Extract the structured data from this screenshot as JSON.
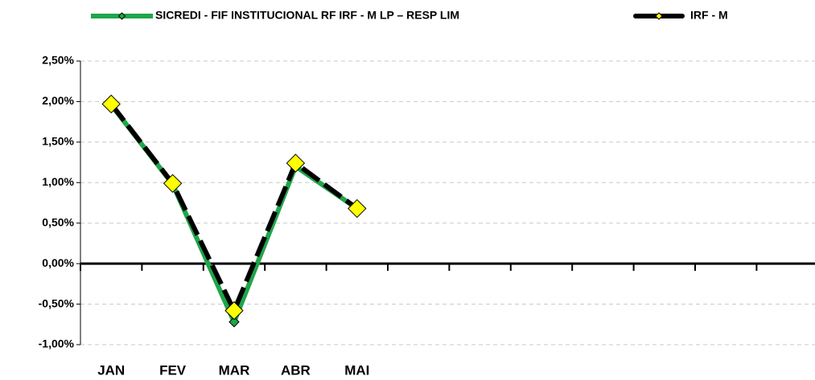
{
  "chart_data": {
    "type": "line",
    "categories": [
      "JAN",
      "FEV",
      "MAR",
      "ABR",
      "MAI",
      null,
      null,
      null,
      null,
      null,
      null,
      null
    ],
    "series": [
      {
        "name": "SICREDI - FIF INSTITUCIONAL RF IRF - M LP – RESP LIM",
        "color": "#1fa64a",
        "marker_color": "#1fa64a",
        "dashed": false,
        "values": [
          1.96,
          0.98,
          -0.72,
          1.2,
          0.68,
          null,
          null,
          null,
          null,
          null,
          null,
          null
        ]
      },
      {
        "name": "IRF - M",
        "color": "#000000",
        "marker_color": "#ffff00",
        "dashed": true,
        "values": [
          1.97,
          0.99,
          -0.58,
          1.24,
          0.68,
          null,
          null,
          null,
          null,
          null,
          null,
          null
        ]
      }
    ],
    "ylim": [
      -1,
      2.5
    ],
    "yticks": [
      {
        "value": -1,
        "label": "-1,00%"
      },
      {
        "value": -0.5,
        "label": "-0,50%"
      },
      {
        "value": 0,
        "label": "0,00%"
      },
      {
        "value": 0.5,
        "label": "0,50%"
      },
      {
        "value": 1,
        "label": "1,00%"
      },
      {
        "value": 1.5,
        "label": "1,50%"
      },
      {
        "value": 2,
        "label": "2,00%"
      },
      {
        "value": 2.5,
        "label": "2,50%"
      }
    ],
    "grid": true,
    "legend": "top"
  }
}
